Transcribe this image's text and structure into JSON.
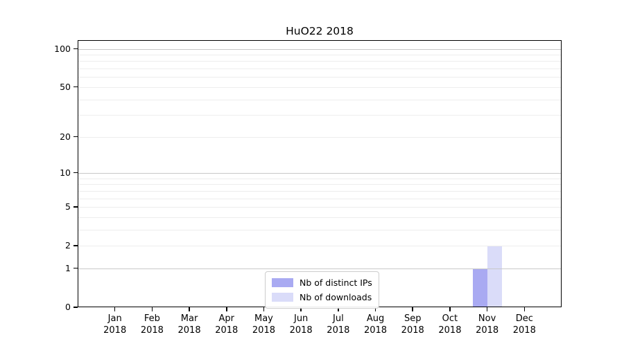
{
  "chart_data": {
    "type": "bar",
    "title": "HuO22 2018",
    "x_year": "2018",
    "categories": [
      "Jan",
      "Feb",
      "Mar",
      "Apr",
      "May",
      "Jun",
      "Jul",
      "Aug",
      "Sep",
      "Oct",
      "Nov",
      "Dec"
    ],
    "series": [
      {
        "name": "Nb of distinct IPs",
        "color": "#a9aaf2",
        "values": [
          0,
          0,
          0,
          0,
          0,
          0,
          0,
          0,
          0,
          0,
          1,
          0
        ]
      },
      {
        "name": "Nb of downloads",
        "color": "#dadcf9",
        "values": [
          0,
          0,
          0,
          0,
          0,
          0,
          0,
          0,
          0,
          0,
          2,
          0
        ]
      }
    ],
    "yscale": "log1p",
    "yticks": [
      0,
      1,
      2,
      5,
      10,
      20,
      50,
      100
    ],
    "ylim": [
      0,
      110
    ],
    "grid": {
      "minor_values": [
        2,
        3,
        4,
        5,
        6,
        7,
        8,
        9,
        20,
        30,
        40,
        50,
        60,
        70,
        80,
        90
      ],
      "major_values": [
        1,
        10,
        100
      ],
      "minor_color": "#ededed",
      "major_color": "#c8c8c8"
    },
    "legend_position": "bottom-center",
    "axis_color": "#000000",
    "background_color": "#ffffff"
  }
}
